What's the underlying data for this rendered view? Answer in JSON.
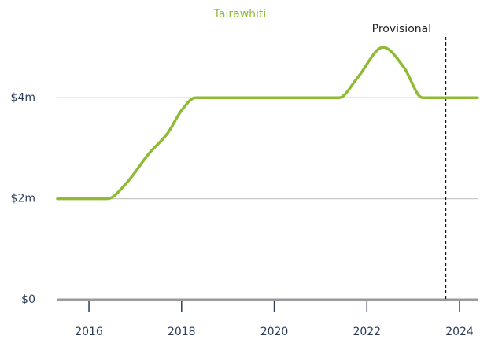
{
  "chart_data": {
    "type": "line",
    "title": "Tairāwhiti",
    "x": [
      2015.32,
      2016.4,
      2016.8,
      2017.3,
      2017.7,
      2018.0,
      2018.3,
      2021.4,
      2021.8,
      2022.35,
      2022.8,
      2023.2,
      2024.39
    ],
    "series": [
      {
        "color": "#8dbb34",
        "values": [
          2,
          2,
          2.3,
          2.9,
          3.3,
          3.75,
          4,
          4,
          4.4,
          5,
          4.6,
          4,
          4
        ]
      }
    ],
    "xlim": [
      2015.32,
      2024.39
    ],
    "xticks": [
      2016,
      2018,
      2020,
      2022,
      2024
    ],
    "ylim": [
      0,
      5.5
    ],
    "yticks": [
      {
        "value": 0,
        "label": "$0"
      },
      {
        "value": 2,
        "label": "$2m"
      },
      {
        "value": 4,
        "label": "$4m"
      }
    ],
    "grid": true,
    "annotations": [
      {
        "text": "Provisional",
        "x": 2023.7
      }
    ]
  }
}
